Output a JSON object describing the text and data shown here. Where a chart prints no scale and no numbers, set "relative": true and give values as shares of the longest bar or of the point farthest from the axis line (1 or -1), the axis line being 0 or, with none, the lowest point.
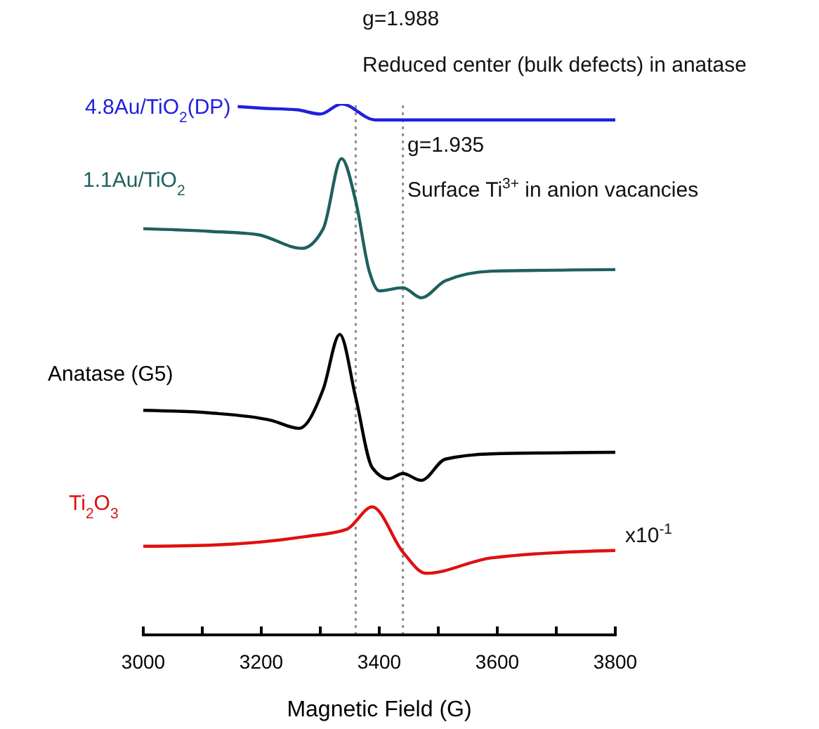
{
  "chart_data": {
    "type": "line",
    "relative": true,
    "xlabel": "Magnetic Field (G)",
    "xlim": [
      3000,
      3800
    ],
    "xticks": [
      3000,
      {
        "value": 3100,
        "label": null
      },
      3200,
      {
        "value": 3300,
        "label": null
      },
      3400,
      {
        "value": 3500,
        "label": null
      },
      3600,
      {
        "value": 3700,
        "label": null
      },
      3800
    ],
    "marker": "none",
    "line_style": "solid",
    "tick_labels": "x",
    "series": [
      {
        "name": "4.8Au/TiO$_{2}$(DP)",
        "color": "#2020e0",
        "x": [
          3160,
          3200,
          3260,
          3300,
          3336,
          3393,
          3500,
          3600,
          3700,
          3800
        ],
        "values": [
          0.995,
          0.992,
          0.989,
          0.981,
          1,
          0.97,
          0.97,
          0.97,
          0.97,
          0.97
        ]
      },
      {
        "name": "1.1Au/TiO$_{2}$",
        "color": "#1f6060",
        "x": [
          3000,
          3114,
          3193,
          3269,
          3305,
          3336,
          3360,
          3383,
          3400,
          3440,
          3471,
          3512,
          3590,
          3800
        ],
        "values": [
          0.765,
          0.76,
          0.754,
          0.728,
          0.765,
          0.897,
          0.817,
          0.685,
          0.648,
          0.654,
          0.635,
          0.667,
          0.685,
          0.688
        ]
      },
      {
        "name": "Anatase (G5)",
        "color": "#000000",
        "x": [
          3000,
          3114,
          3217,
          3264,
          3305,
          3333,
          3360,
          3388,
          3416,
          3440,
          3471,
          3512,
          3590,
          3800
        ],
        "values": [
          0.423,
          0.418,
          0.404,
          0.389,
          0.463,
          0.566,
          0.447,
          0.315,
          0.294,
          0.304,
          0.291,
          0.331,
          0.341,
          0.344
        ]
      },
      {
        "name": "Ti$_{2}$O$_{3}$",
        "color": "#e01010",
        "x": [
          3000,
          3114,
          3274,
          3345,
          3388,
          3440,
          3479,
          3590,
          3800
        ],
        "values": [
          0.167,
          0.169,
          0.185,
          0.199,
          0.241,
          0.156,
          0.116,
          0.145,
          0.159
        ]
      }
    ],
    "ref_lines": [
      {
        "axis": "x",
        "value": 3360,
        "color": "#909090",
        "line_style": "dotted"
      },
      {
        "axis": "x",
        "value": 3440,
        "color": "#909090",
        "line_style": "dotted"
      }
    ],
    "annotations": [
      "g=1.988",
      "Reduced center (bulk defects) in anatase",
      "g=1.935",
      "Surface Ti$^{3+}$ in anion vacancies",
      "x10$^{-1}$"
    ]
  }
}
